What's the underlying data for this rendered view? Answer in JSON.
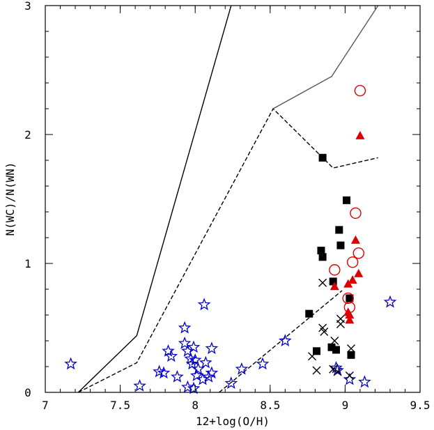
{
  "chart_data": {
    "type": "scatter",
    "title": "",
    "xlabel": "12+log(O/H)",
    "ylabel": "N(WC)/N(WN)",
    "xlim": [
      7,
      9.5
    ],
    "ylim": [
      0,
      3
    ],
    "xticks": [
      7,
      7.5,
      8,
      8.5,
      9,
      9.5
    ],
    "xtick_labels": [
      "7",
      "7.5",
      "8",
      "8.5",
      "9",
      "9.5"
    ],
    "yticks": [
      0,
      1,
      2,
      3
    ],
    "ytick_labels": [
      "0",
      "1",
      "2",
      "3"
    ],
    "grid": false,
    "legend": "none",
    "series": [
      {
        "marker": "open-star",
        "color": "#0000cc",
        "points": [
          [
            7.17,
            0.22
          ],
          [
            7.63,
            0.05
          ],
          [
            7.76,
            0.16
          ],
          [
            7.79,
            0.15
          ],
          [
            7.82,
            0.32
          ],
          [
            7.84,
            0.28
          ],
          [
            7.88,
            0.12
          ],
          [
            7.93,
            0.5
          ],
          [
            7.93,
            0.38
          ],
          [
            7.95,
            0.32
          ],
          [
            7.95,
            0.04
          ],
          [
            7.97,
            0.26
          ],
          [
            7.98,
            0.22
          ],
          [
            7.99,
            0.35
          ],
          [
            7.99,
            0.03
          ],
          [
            8.0,
            0.25
          ],
          [
            8.01,
            0.13
          ],
          [
            8.02,
            0.18
          ],
          [
            8.05,
            0.1
          ],
          [
            8.06,
            0.68
          ],
          [
            8.07,
            0.23
          ],
          [
            8.09,
            0.12
          ],
          [
            8.11,
            0.15
          ],
          [
            8.11,
            0.34
          ],
          [
            8.24,
            0.07
          ],
          [
            8.31,
            0.18
          ],
          [
            8.45,
            0.22
          ],
          [
            8.6,
            0.4
          ],
          [
            8.94,
            0.19
          ],
          [
            8.95,
            0.17
          ],
          [
            9.03,
            0.1
          ],
          [
            9.13,
            0.08
          ],
          [
            9.3,
            0.7
          ]
        ]
      },
      {
        "marker": "filled-square",
        "color": "#000000",
        "points": [
          [
            8.85,
            1.82
          ],
          [
            9.01,
            1.49
          ],
          [
            8.96,
            1.26
          ],
          [
            8.97,
            1.14
          ],
          [
            8.84,
            1.1
          ],
          [
            8.85,
            1.05
          ],
          [
            8.92,
            0.86
          ],
          [
            9.03,
            0.73
          ],
          [
            8.76,
            0.61
          ],
          [
            8.91,
            0.35
          ],
          [
            8.94,
            0.33
          ],
          [
            8.81,
            0.32
          ],
          [
            9.04,
            0.29
          ]
        ]
      },
      {
        "marker": "x",
        "color": "#000000",
        "points": [
          [
            8.85,
            0.85
          ],
          [
            8.85,
            0.5
          ],
          [
            8.86,
            0.47
          ],
          [
            8.97,
            0.57
          ],
          [
            8.97,
            0.53
          ],
          [
            8.93,
            0.4
          ],
          [
            9.04,
            0.34
          ],
          [
            8.78,
            0.28
          ],
          [
            8.92,
            0.18
          ],
          [
            8.81,
            0.17
          ],
          [
            9.03,
            0.13
          ],
          [
            8.95,
            0.16
          ]
        ]
      },
      {
        "marker": "open-circle",
        "color": "#dd0000",
        "points": [
          [
            9.1,
            2.34
          ],
          [
            9.07,
            1.39
          ],
          [
            9.09,
            1.08
          ],
          [
            9.05,
            1.01
          ],
          [
            8.93,
            0.95
          ],
          [
            9.02,
            0.73
          ],
          [
            9.03,
            0.66
          ]
        ]
      },
      {
        "marker": "filled-triangle",
        "color": "#dd0000",
        "points": [
          [
            9.1,
            1.99
          ],
          [
            9.07,
            1.18
          ],
          [
            9.09,
            0.92
          ],
          [
            9.05,
            0.87
          ],
          [
            9.02,
            0.84
          ],
          [
            8.93,
            0.82
          ],
          [
            9.02,
            0.62
          ],
          [
            9.03,
            0.6
          ],
          [
            9.03,
            0.56
          ]
        ]
      }
    ],
    "model_lines": [
      {
        "style": "solid",
        "color": "#000000",
        "points": [
          [
            7.22,
            0
          ],
          [
            7.61,
            0.44
          ],
          [
            8.24,
            3.0
          ]
        ]
      },
      {
        "style": "dashed",
        "color": "#000000",
        "points": [
          [
            7.22,
            0
          ],
          [
            7.61,
            0.23
          ],
          [
            8.52,
            2.2
          ],
          [
            8.92,
            1.74
          ],
          [
            9.22,
            1.82
          ]
        ]
      },
      {
        "style": "solid",
        "color": "#555555",
        "points": [
          [
            8.52,
            2.2
          ],
          [
            8.91,
            2.45
          ],
          [
            9.22,
            3.0
          ]
        ]
      },
      {
        "style": "dashed",
        "color": "#000000",
        "points": [
          [
            8.16,
            0
          ],
          [
            8.98,
            0.79
          ]
        ]
      }
    ]
  }
}
